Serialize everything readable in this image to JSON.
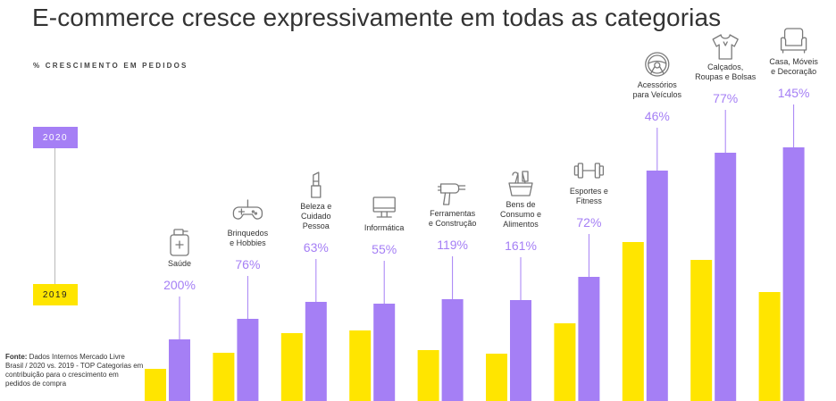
{
  "title": "E-commerce cresce expressivamente em todas as categorias",
  "subtitle": "% CRESCIMENTO EM PEDIDOS",
  "legend": {
    "y2020": "2020",
    "y2019": "2019"
  },
  "source": {
    "label": "Fonte:",
    "text": "Dados Internos Mercado Livre Brasil / 2020 vs. 2019 - TOP Categorias em contribuição para o crescimento em pedidos de compra"
  },
  "colors": {
    "y2019": "#ffe500",
    "y2020": "#a57ff5",
    "connector": "#a57ff5"
  },
  "chart_data": {
    "type": "bar",
    "categories": [
      "Saúde",
      "Brinquedos e Hobbies",
      "Beleza e Cuidado Pessoa",
      "Informática",
      "Ferramentas e Construção",
      "Bens de Consumo e Alimentos",
      "Esportes e Fitness",
      "Acessórios para Veículos",
      "Calçados, Roupas e Bolsas",
      "Casa, Móveis e Decoração"
    ],
    "category_lines": [
      [
        "Saúde"
      ],
      [
        "Brinquedos",
        "e Hobbies"
      ],
      [
        "Beleza e",
        "Cuidado",
        "Pessoa"
      ],
      [
        "Informática"
      ],
      [
        "Ferramentas",
        "e Construção"
      ],
      [
        "Bens de",
        "Consumo e",
        "Alimentos"
      ],
      [
        "Esportes e",
        "Fitness"
      ],
      [
        "Acessórios",
        "para Veículos"
      ],
      [
        "Calçados,",
        "Roupas e Bolsas"
      ],
      [
        "Casa, Móveis",
        "e Decoração"
      ]
    ],
    "growth_labels": [
      "200%",
      "76%",
      "63%",
      "55%",
      "119%",
      "161%",
      "72%",
      "46%",
      "77%",
      "145%"
    ],
    "icons": [
      "medicine-bottle-icon",
      "gamepad-icon",
      "lipstick-icon",
      "monitor-icon",
      "drill-icon",
      "shopping-basket-icon",
      "dumbbell-icon",
      "steering-wheel-icon",
      "t-shirt-icon",
      "armchair-icon"
    ],
    "series": [
      {
        "name": "2019",
        "values": [
          36,
          54,
          76,
          79,
          57,
          53,
          87,
          178,
          158,
          122
        ]
      },
      {
        "name": "2020",
        "values": [
          69,
          92,
          111,
          109,
          114,
          113,
          139,
          258,
          278,
          284
        ]
      }
    ],
    "ylim": [
      0,
      300
    ]
  }
}
